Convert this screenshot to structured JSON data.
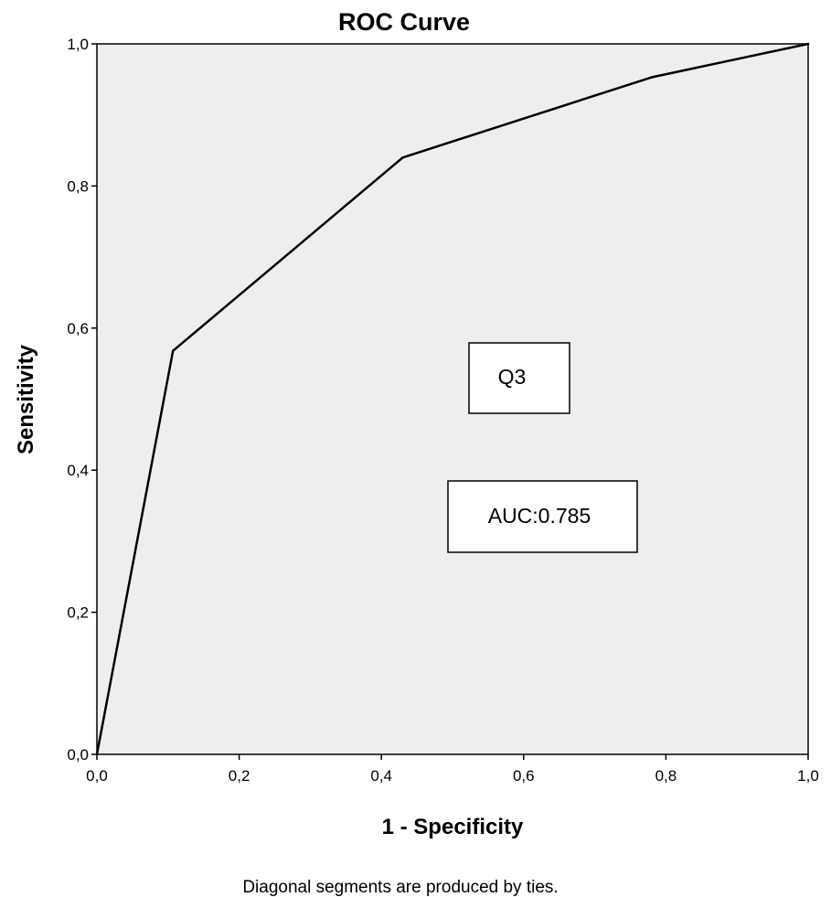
{
  "chart_data": {
    "type": "line",
    "title": "ROC Curve",
    "xlabel": "1 - Specificity",
    "ylabel": "Sensitivity",
    "xlim": [
      0,
      1
    ],
    "ylim": [
      0,
      1
    ],
    "x_ticks": [
      0,
      0.2,
      0.4,
      0.6,
      0.8,
      1.0
    ],
    "y_ticks": [
      0,
      0.2,
      0.4,
      0.6,
      0.8,
      1.0
    ],
    "x_tick_labels": [
      "0,0",
      "0,2",
      "0,4",
      "0,6",
      "0,8",
      "1,0"
    ],
    "y_tick_labels": [
      "0,0",
      "0,2",
      "0,4",
      "0,6",
      "0,8",
      "1,0"
    ],
    "grid": false,
    "background": "#eeeeee",
    "series": [
      {
        "x": [
          0.0,
          0.107,
          0.43,
          0.78,
          1.0
        ],
        "y": [
          0.0,
          0.568,
          0.84,
          0.953,
          1.0
        ],
        "color": "#000000"
      }
    ],
    "annotations": [
      {
        "text": "Q3"
      },
      {
        "text": "AUC:0.785"
      }
    ],
    "footnote": "Diagonal segments are produced by ties."
  }
}
